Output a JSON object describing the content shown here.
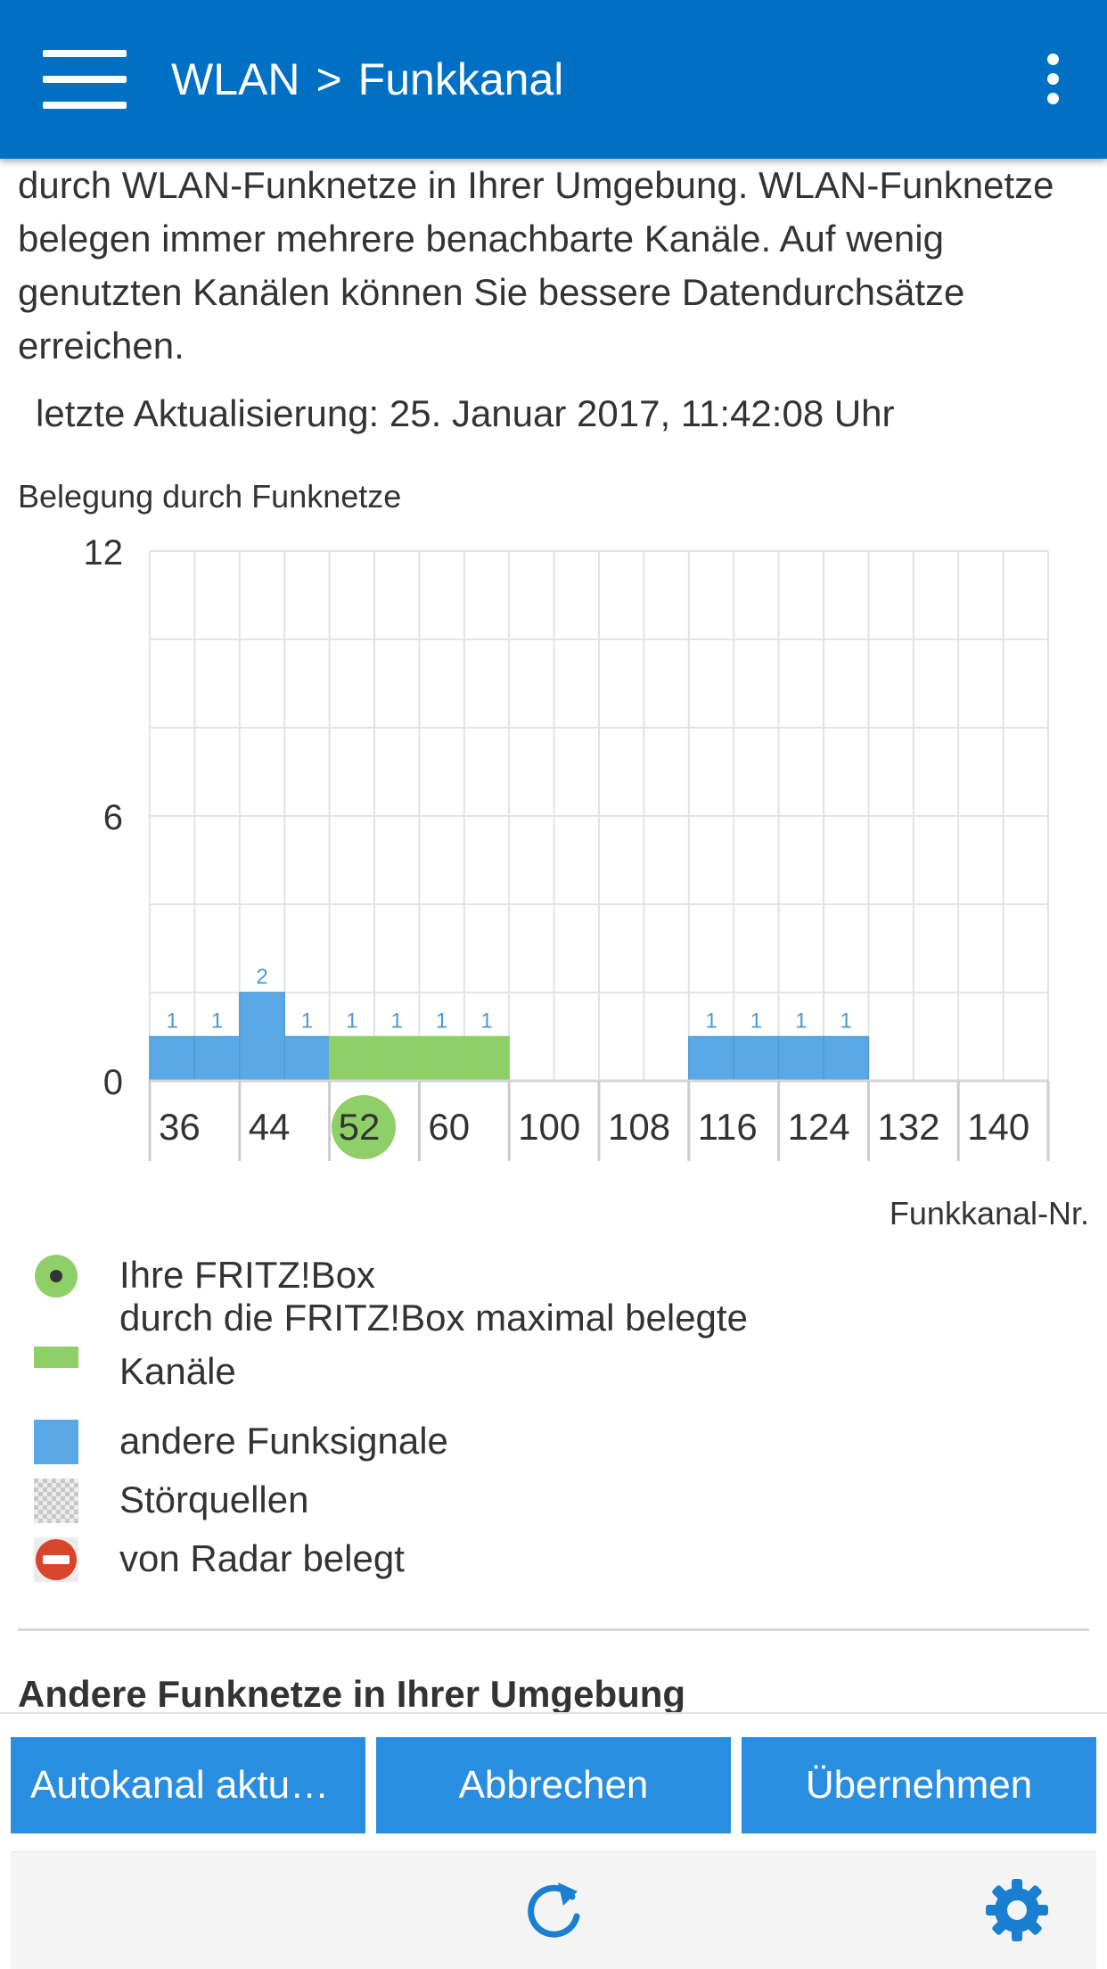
{
  "header": {
    "breadcrumb_parent": "WLAN",
    "breadcrumb_separator": ">",
    "breadcrumb_current": "Funkkanal",
    "menu_icon": "hamburger-menu-icon",
    "more_icon": "more-vertical-icon",
    "bar_color": "#0070c4"
  },
  "intro": {
    "text": "durch WLAN-Funknetze in Ihrer Umgebung. WLAN-Funknetze belegen immer mehrere benachbarte Kanäle. Auf wenig genutzten Kanälen können Sie bessere Datendurchsätze erreichen.",
    "last_update": "letzte Aktualisierung: 25. Januar 2017, 11:42:08 Uhr"
  },
  "chart_heading": "Belegung durch Funknetze",
  "chart_data": {
    "type": "bar",
    "title": "Belegung durch Funknetze",
    "xlabel": "Funkkanal-Nr.",
    "ylabel": "",
    "ylim": [
      0,
      12
    ],
    "yticks": [
      0,
      6,
      12
    ],
    "grid": true,
    "x_tick_labels": [
      "36",
      "44",
      "52",
      "60",
      "100",
      "108",
      "116",
      "124",
      "132",
      "140"
    ],
    "own_channel": "52",
    "channels": [
      "36",
      "40",
      "44",
      "48",
      "52",
      "56",
      "60",
      "64",
      "100",
      "104",
      "108",
      "112",
      "116",
      "120",
      "124",
      "128",
      "132",
      "136",
      "140"
    ],
    "series": [
      {
        "name": "andere Funksignale",
        "color": "#5aa9e6",
        "values": [
          1,
          1,
          2,
          1,
          0,
          0,
          0,
          0,
          0,
          0,
          0,
          0,
          1,
          1,
          1,
          1,
          0,
          0,
          0
        ]
      },
      {
        "name": "durch die FRITZ!Box maximal belegte Kanäle",
        "color": "#8fcf67",
        "values": [
          0,
          0,
          0,
          0,
          1,
          1,
          1,
          1,
          0,
          0,
          0,
          0,
          0,
          0,
          0,
          0,
          0,
          0,
          0
        ]
      }
    ],
    "data_label_color": "#4a9ad6",
    "own_marker_color": "#8fcf67"
  },
  "x_unit_label": "Funkkanal-Nr.",
  "legend": [
    {
      "icon": "fritzbox-dot-icon",
      "label": "Ihre FRITZ!Box"
    },
    {
      "icon": "green-bar-icon",
      "label": "durch die FRITZ!Box maximal belegte Kanäle"
    },
    {
      "icon": "blue-square-icon",
      "label": "andere Funksignale"
    },
    {
      "icon": "checkered-square-icon",
      "label": "Störquellen"
    },
    {
      "icon": "radar-no-entry-icon",
      "label": "von Radar belegt"
    }
  ],
  "section_heading": "Andere Funknetze in Ihrer Umgebung",
  "actions": {
    "autochannel": "Autokanal aktualisieren",
    "cancel": "Abbrechen",
    "apply": "Übernehmen",
    "button_color": "#2a8ee0"
  },
  "bottom_nav": {
    "refresh_icon": "refresh-icon",
    "settings_icon": "gear-icon",
    "icon_color": "#1a7fd0"
  }
}
